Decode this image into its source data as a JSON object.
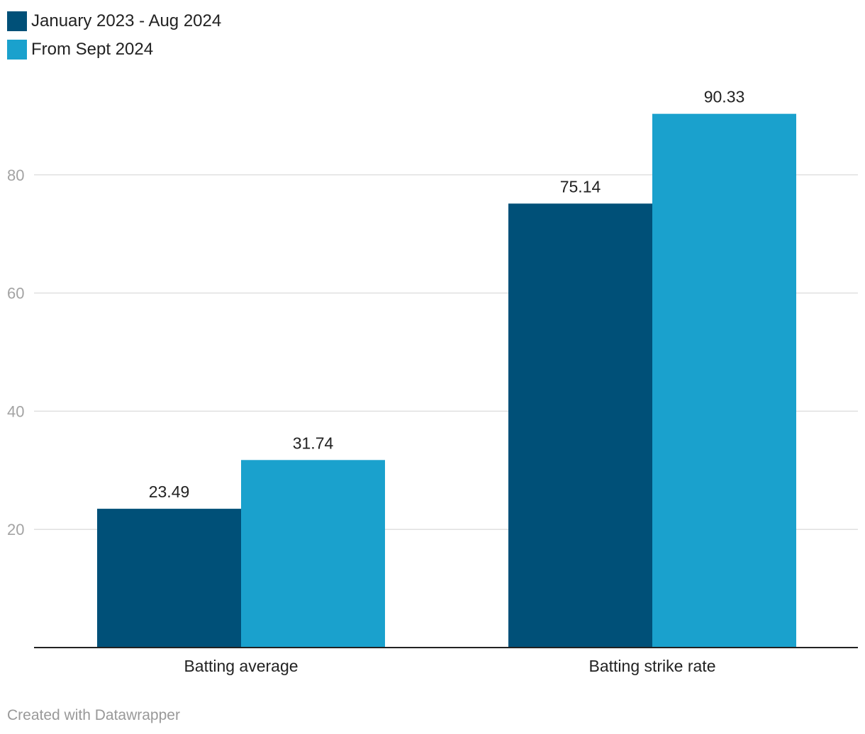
{
  "legend": [
    {
      "label": "January 2023 - Aug 2024",
      "color": "#005078"
    },
    {
      "label": "From Sept 2024",
      "color": "#1aa1cd"
    }
  ],
  "chart_data": {
    "type": "bar",
    "categories": [
      "Batting average",
      "Batting strike rate"
    ],
    "series": [
      {
        "name": "January 2023 - Aug 2024",
        "values": [
          23.49,
          75.14
        ],
        "labels": [
          "23.49",
          "75.14"
        ],
        "color": "#005078"
      },
      {
        "name": "From Sept 2024",
        "values": [
          31.74,
          90.33
        ],
        "labels": [
          "31.74",
          "90.33"
        ],
        "color": "#1aa1cd"
      }
    ],
    "yticks": [
      20,
      40,
      60,
      80
    ],
    "ylim": [
      0,
      100
    ],
    "grid": true,
    "legend_position": "top-left"
  },
  "footer": {
    "credit": "Created with Datawrapper"
  }
}
